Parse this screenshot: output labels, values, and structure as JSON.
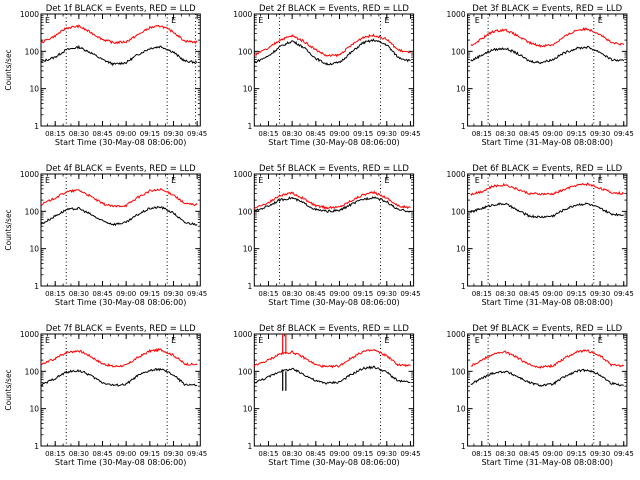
{
  "figure": {
    "start_time_label": "Start Time (30-May-08 08:06:00)",
    "ylabel": "Counts/sec",
    "y_ticks": [
      "1",
      "10",
      "100",
      "1000"
    ],
    "x_ticks": [
      "08:15",
      "08:30",
      "08:45",
      "09:00",
      "09:15",
      "09:30",
      "09:45"
    ],
    "marker_label": "E",
    "colors": {
      "events": "#000000",
      "lld": "#ff0000",
      "frame": "#000000"
    }
  },
  "chart_data": [
    {
      "type": "line",
      "title": "Det 1f BLACK = Events, RED = LLD",
      "xlabel": "Start Time (30-May-08 08:06:00)",
      "ylabel": "Counts/sec",
      "ylim": [
        1,
        1000
      ],
      "y_scale": "log",
      "x": [
        "08:06",
        "08:15",
        "08:22",
        "08:30",
        "08:37",
        "08:45",
        "08:52",
        "09:00",
        "09:07",
        "09:15",
        "09:22",
        "09:30",
        "09:37",
        "09:45"
      ],
      "series": [
        {
          "name": "BLACK = Events",
          "values": [
            52,
            70,
            110,
            130,
            95,
            60,
            45,
            50,
            80,
            120,
            135,
            95,
            55,
            50
          ]
        },
        {
          "name": "RED = LLD",
          "values": [
            170,
            260,
            420,
            470,
            330,
            210,
            170,
            180,
            270,
            430,
            480,
            330,
            190,
            175
          ]
        }
      ],
      "dotted_x": [
        "08:22",
        "09:26",
        "09:44"
      ],
      "marker_x": [
        "08:06",
        "09:26"
      ]
    },
    {
      "type": "line",
      "title": "Det 2f BLACK = Events, RED = LLD",
      "xlabel": "Start Time (30-May-08 08:06:00)",
      "ylabel": "Counts/sec",
      "ylim": [
        1,
        1000
      ],
      "y_scale": "log",
      "x": [
        "08:06",
        "08:15",
        "08:22",
        "08:30",
        "08:37",
        "08:45",
        "08:52",
        "09:00",
        "09:07",
        "09:15",
        "09:22",
        "09:30",
        "09:37",
        "09:45"
      ],
      "series": [
        {
          "name": "BLACK = Events",
          "values": [
            50,
            75,
            130,
            190,
            130,
            65,
            45,
            50,
            90,
            170,
            200,
            150,
            70,
            55
          ]
        },
        {
          "name": "RED = LLD",
          "values": [
            80,
            120,
            200,
            260,
            190,
            110,
            75,
            80,
            140,
            240,
            270,
            210,
            110,
            90
          ]
        }
      ],
      "dotted_x": [
        "08:22",
        "09:26"
      ],
      "marker_x": [
        "08:06",
        "09:26"
      ]
    },
    {
      "type": "line",
      "title": "Det 3f BLACK = Events, RED = LLD",
      "xlabel": "Start Time (31-May-08 08:08:00)",
      "ylabel": "Counts/sec",
      "ylim": [
        1,
        1000
      ],
      "y_scale": "log",
      "x": [
        "08:08",
        "08:15",
        "08:22",
        "08:30",
        "08:37",
        "08:45",
        "08:52",
        "09:00",
        "09:07",
        "09:15",
        "09:22",
        "09:30",
        "09:37",
        "09:45"
      ],
      "series": [
        {
          "name": "BLACK = Events",
          "values": [
            55,
            80,
            110,
            120,
            90,
            55,
            50,
            60,
            90,
            120,
            130,
            95,
            60,
            55
          ]
        },
        {
          "name": "RED = LLD",
          "values": [
            140,
            220,
            340,
            380,
            270,
            170,
            140,
            150,
            240,
            370,
            400,
            290,
            170,
            150
          ]
        }
      ],
      "dotted_x": [
        "08:19",
        "09:26"
      ],
      "marker_x": [
        "08:08",
        "09:26"
      ]
    },
    {
      "type": "line",
      "title": "Det 4f BLACK = Events, RED = LLD",
      "xlabel": "Start Time (30-May-08 08:06:00)",
      "ylabel": "Counts/sec",
      "ylim": [
        1,
        1000
      ],
      "y_scale": "log",
      "x": [
        "08:06",
        "08:15",
        "08:22",
        "08:30",
        "08:37",
        "08:45",
        "08:52",
        "09:00",
        "09:07",
        "09:15",
        "09:22",
        "09:30",
        "09:37",
        "09:45"
      ],
      "series": [
        {
          "name": "BLACK = Events",
          "values": [
            45,
            75,
            110,
            120,
            85,
            55,
            45,
            50,
            80,
            120,
            130,
            90,
            50,
            45
          ]
        },
        {
          "name": "RED = LLD",
          "values": [
            150,
            230,
            330,
            370,
            260,
            160,
            135,
            145,
            230,
            350,
            380,
            280,
            160,
            150
          ]
        }
      ],
      "dotted_x": [
        "08:22",
        "09:26"
      ],
      "marker_x": [
        "08:06",
        "09:26"
      ]
    },
    {
      "type": "line",
      "title": "Det 5f BLACK = Events, RED = LLD",
      "xlabel": "Start Time (30-May-08 08:06:00)",
      "ylabel": "Counts/sec",
      "ylim": [
        1,
        1000
      ],
      "y_scale": "log",
      "x": [
        "08:06",
        "08:15",
        "08:22",
        "08:30",
        "08:37",
        "08:45",
        "08:52",
        "09:00",
        "09:07",
        "09:15",
        "09:22",
        "09:30",
        "09:37",
        "09:45"
      ],
      "series": [
        {
          "name": "BLACK = Events",
          "values": [
            100,
            140,
            200,
            230,
            170,
            110,
            100,
            105,
            150,
            210,
            240,
            180,
            110,
            100
          ]
        },
        {
          "name": "RED = LLD",
          "values": [
            120,
            170,
            260,
            310,
            220,
            140,
            125,
            130,
            190,
            280,
            320,
            230,
            140,
            125
          ]
        }
      ],
      "dotted_x": [
        "08:22",
        "09:26"
      ],
      "marker_x": [
        "08:06",
        "09:26"
      ]
    },
    {
      "type": "line",
      "title": "Det 6f BLACK = Events, RED = LLD",
      "xlabel": "Start Time (31-May-08 08:08:00)",
      "ylabel": "Counts/sec",
      "ylim": [
        1,
        1000
      ],
      "y_scale": "log",
      "x": [
        "08:08",
        "08:15",
        "08:22",
        "08:30",
        "08:37",
        "08:45",
        "08:52",
        "09:00",
        "09:07",
        "09:15",
        "09:22",
        "09:30",
        "09:37",
        "09:45"
      ],
      "series": [
        {
          "name": "BLACK = Events",
          "values": [
            95,
            120,
            150,
            160,
            110,
            75,
            70,
            75,
            110,
            150,
            160,
            120,
            85,
            80
          ]
        },
        {
          "name": "RED = LLD",
          "values": [
            290,
            340,
            470,
            520,
            400,
            300,
            290,
            290,
            380,
            500,
            540,
            420,
            320,
            300
          ]
        }
      ],
      "dotted_x": [
        "08:19",
        "09:26"
      ],
      "marker_x": [
        "08:08",
        "09:26"
      ]
    },
    {
      "type": "line",
      "title": "Det 7f BLACK = Events, RED = LLD",
      "xlabel": "Start Time (30-May-08 08:06:00)",
      "ylabel": "Counts/sec",
      "ylim": [
        1,
        1000
      ],
      "y_scale": "log",
      "x": [
        "08:06",
        "08:15",
        "08:22",
        "08:30",
        "08:37",
        "08:45",
        "08:52",
        "09:00",
        "09:07",
        "09:15",
        "09:22",
        "09:30",
        "09:37",
        "09:45"
      ],
      "series": [
        {
          "name": "BLACK = Events",
          "values": [
            42,
            65,
            95,
            105,
            80,
            50,
            42,
            45,
            75,
            105,
            115,
            80,
            45,
            42
          ]
        },
        {
          "name": "RED = LLD",
          "values": [
            150,
            220,
            320,
            360,
            260,
            160,
            135,
            145,
            230,
            350,
            380,
            270,
            160,
            150
          ]
        }
      ],
      "dotted_x": [
        "08:22",
        "09:26"
      ],
      "marker_x": [
        "08:06",
        "09:26"
      ]
    },
    {
      "type": "line",
      "title": "Det 8f BLACK = Events, RED = LLD",
      "xlabel": "Start Time (30-May-08 08:06:00)",
      "ylabel": "Counts/sec",
      "ylim": [
        1,
        1000
      ],
      "y_scale": "log",
      "x": [
        "08:06",
        "08:15",
        "08:22",
        "08:30",
        "08:37",
        "08:45",
        "08:52",
        "09:00",
        "09:07",
        "09:15",
        "09:22",
        "09:30",
        "09:37",
        "09:45"
      ],
      "series": [
        {
          "name": "BLACK = Events",
          "values": [
            50,
            70,
            100,
            115,
            85,
            55,
            48,
            52,
            80,
            120,
            130,
            95,
            55,
            50
          ]
        },
        {
          "name": "RED = LLD",
          "values": [
            140,
            200,
            290,
            330,
            240,
            150,
            130,
            140,
            220,
            340,
            370,
            260,
            150,
            140
          ]
        }
      ],
      "dotted_x": [
        "09:26"
      ],
      "marker_x": [
        "08:06",
        "09:26"
      ],
      "spikes": [
        {
          "x": "08:24",
          "series": "RED = LLD",
          "value": 1000
        },
        {
          "x": "08:26",
          "series": "RED = LLD",
          "value": 1000
        },
        {
          "x": "08:24",
          "series": "BLACK = Events",
          "value": 30
        },
        {
          "x": "08:26",
          "series": "BLACK = Events",
          "value": 30
        }
      ]
    },
    {
      "type": "line",
      "title": "Det 9f BLACK = Events, RED = LLD",
      "xlabel": "Start Time (31-May-08 08:08:00)",
      "ylabel": "Counts/sec",
      "ylim": [
        1,
        1000
      ],
      "y_scale": "log",
      "x": [
        "08:08",
        "08:15",
        "08:22",
        "08:30",
        "08:37",
        "08:45",
        "08:52",
        "09:00",
        "09:07",
        "09:15",
        "09:22",
        "09:30",
        "09:37",
        "09:45"
      ],
      "series": [
        {
          "name": "BLACK = Events",
          "values": [
            45,
            65,
            90,
            100,
            75,
            50,
            42,
            45,
            70,
            100,
            110,
            80,
            48,
            42
          ]
        },
        {
          "name": "RED = LLD",
          "values": [
            140,
            200,
            290,
            330,
            240,
            150,
            130,
            140,
            220,
            330,
            360,
            260,
            150,
            140
          ]
        }
      ],
      "dotted_x": [
        "08:19",
        "09:26"
      ],
      "marker_x": [
        "08:08",
        "09:26"
      ]
    }
  ]
}
